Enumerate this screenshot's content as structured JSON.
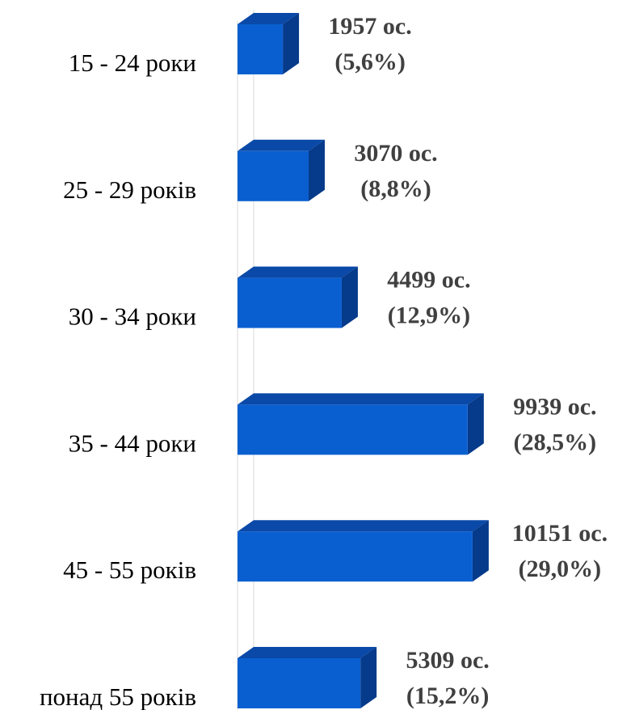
{
  "chart_data": {
    "type": "bar",
    "orientation": "horizontal",
    "style": "3d",
    "categories": [
      "15 - 24 роки",
      "25 - 29 років",
      "30 - 34 роки",
      "35 - 44 роки",
      "45 - 55 років",
      "понад 55 років"
    ],
    "values": [
      1957,
      3070,
      4499,
      9939,
      10151,
      5309
    ],
    "value_labels": [
      "1957 ос.",
      "3070 ос.",
      "4499 ос.",
      "9939 ос.",
      "10151 ос.",
      "5309 ос."
    ],
    "percent_labels": [
      "(5,6%)",
      "(8,8%)",
      "(12,9%)",
      "(28,5%)",
      "(29,0%)",
      "(15,2%)"
    ],
    "title": "",
    "xlabel": "",
    "ylabel": "",
    "grid": false,
    "legend": "none",
    "colors": {
      "bar_front": "#0a5fd0",
      "bar_top": "#0a49a8",
      "bar_side": "#063a8a",
      "axis": "#d9d9d9",
      "category_text": "#000000",
      "value_text": "#404040"
    }
  }
}
